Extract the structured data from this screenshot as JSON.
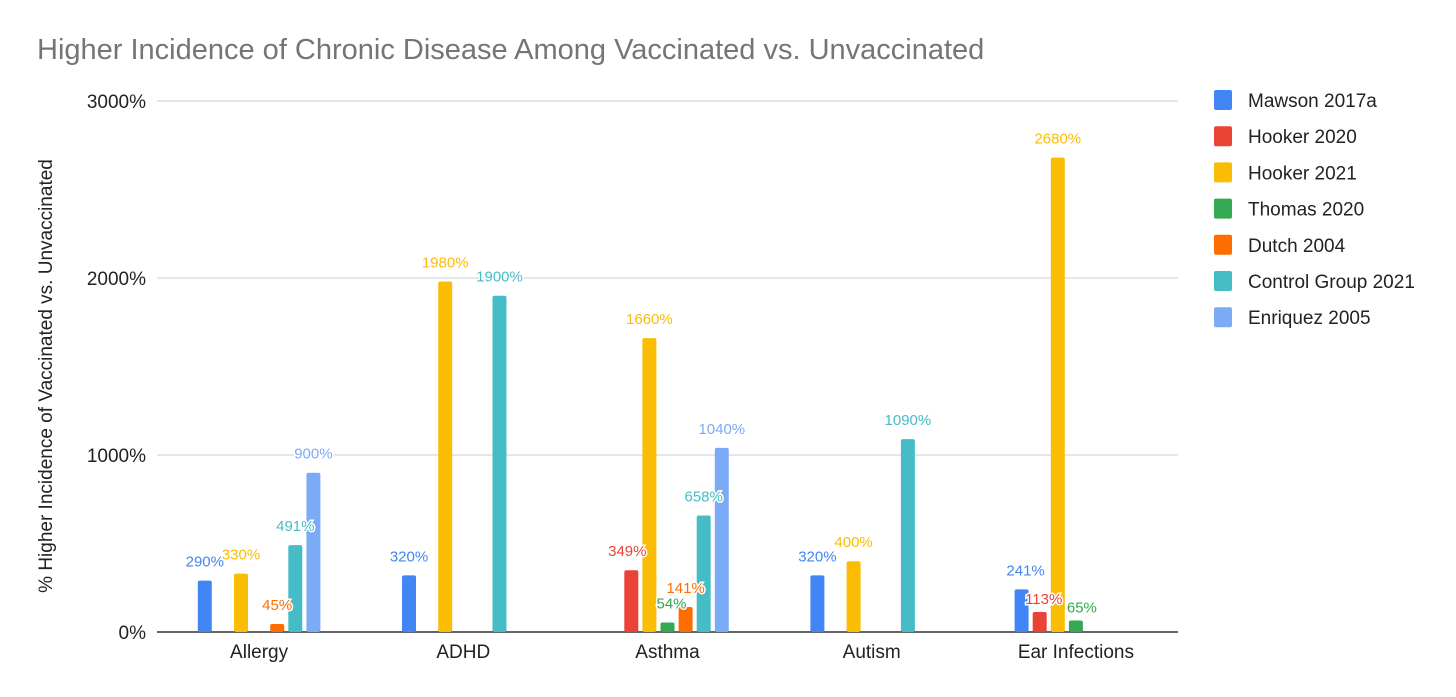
{
  "chart_data": {
    "type": "bar",
    "title": "Higher Incidence of Chronic Disease Among Vaccinated vs. Unvaccinated",
    "xlabel": "",
    "ylabel": "% Higher Incidence of Vaccinated vs. Unvaccinated",
    "ylim": [
      0,
      3000
    ],
    "yticks": [
      0,
      1000,
      2000,
      3000
    ],
    "ytick_labels": [
      "0%",
      "1000%",
      "2000%",
      "3000%"
    ],
    "grid": true,
    "legend_position": "right",
    "categories": [
      "Allergy",
      "ADHD",
      "Asthma",
      "Autism",
      "Ear Infections"
    ],
    "series": [
      {
        "name": "Mawson 2017a",
        "color": "#4285f4",
        "values": [
          290,
          320,
          null,
          320,
          241
        ],
        "labels": [
          "290%",
          "320%",
          null,
          "320%",
          "241%"
        ]
      },
      {
        "name": "Hooker 2020",
        "color": "#ea4335",
        "values": [
          null,
          null,
          349,
          null,
          113
        ],
        "labels": [
          null,
          null,
          "349%",
          null,
          "113%"
        ]
      },
      {
        "name": "Hooker 2021",
        "color": "#fbbc04",
        "values": [
          330,
          1980,
          1660,
          400,
          2680
        ],
        "labels": [
          "330%",
          "1980%",
          "1660%",
          "400%",
          "2680%"
        ]
      },
      {
        "name": "Thomas 2020",
        "color": "#34a853",
        "values": [
          null,
          null,
          54,
          null,
          65
        ],
        "labels": [
          null,
          null,
          "54%",
          null,
          "65%"
        ]
      },
      {
        "name": "Dutch 2004",
        "color": "#ff6d01",
        "values": [
          45,
          null,
          141,
          null,
          null
        ],
        "labels": [
          "45%",
          null,
          "141%",
          null,
          null
        ]
      },
      {
        "name": "Control Group 2021",
        "color": "#46bdc6",
        "values": [
          491,
          1900,
          658,
          1090,
          null
        ],
        "labels": [
          "491%",
          "1900%",
          "658%",
          "1090%",
          null
        ]
      },
      {
        "name": "Enriquez 2005",
        "color": "#7baaf7",
        "values": [
          900,
          null,
          1040,
          null,
          null
        ],
        "labels": [
          "900%",
          null,
          "1040%",
          null,
          null
        ]
      }
    ]
  }
}
